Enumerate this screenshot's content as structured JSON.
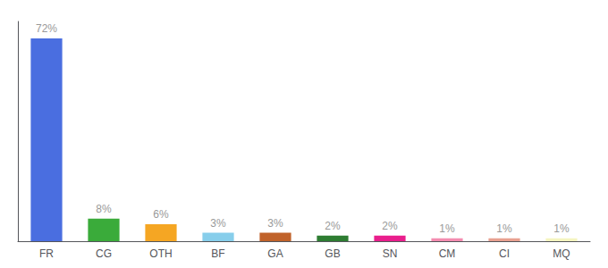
{
  "chart_data": {
    "type": "bar",
    "categories": [
      "FR",
      "CG",
      "OTH",
      "BF",
      "GA",
      "GB",
      "SN",
      "CM",
      "CI",
      "MQ"
    ],
    "values": [
      72,
      8,
      6,
      3,
      3,
      2,
      2,
      1,
      1,
      1
    ],
    "value_labels": [
      "72%",
      "8%",
      "6%",
      "3%",
      "3%",
      "2%",
      "2%",
      "1%",
      "1%",
      "1%"
    ],
    "colors": [
      "#4a6ee0",
      "#3aab3a",
      "#f5a623",
      "#87ceeb",
      "#c0622a",
      "#2e7d32",
      "#e91e8c",
      "#f48cb0",
      "#e8a090",
      "#f5f5c0"
    ],
    "ylim": [
      0,
      78
    ],
    "data_labels": true,
    "tick_labels": "x",
    "grid": false
  }
}
